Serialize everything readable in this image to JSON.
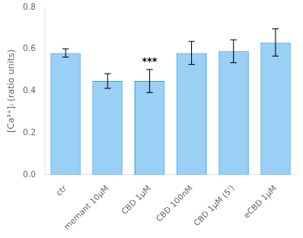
{
  "chart_data": {
    "type": "bar",
    "categories": [
      "ctr",
      "memant 10μM",
      "CBD 1μM",
      "CBD 100nM",
      "CBD 1μM (5')",
      "eCBD 1μM"
    ],
    "values": [
      0.582,
      0.448,
      0.448,
      0.582,
      0.59,
      0.632
    ],
    "errors": [
      0.02,
      0.035,
      0.055,
      0.055,
      0.055,
      0.065
    ],
    "ylabel": "[Ca²⁺]ᵢ (ratio units)",
    "ylim": [
      0.0,
      0.8
    ],
    "yticks": [
      {
        "value": 0,
        "label": "0.0"
      },
      0.2,
      0.4,
      0.6,
      0.8
    ],
    "annotations": [
      {
        "text": "***",
        "category": "CBD 1μM"
      }
    ],
    "grid": false
  }
}
